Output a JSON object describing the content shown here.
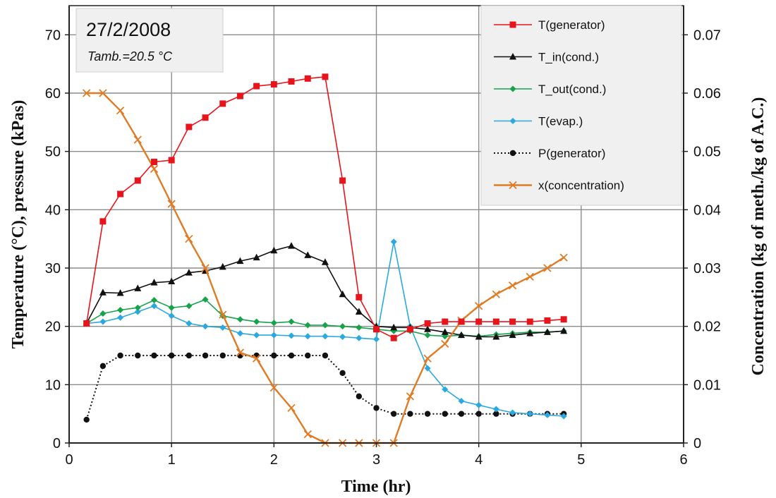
{
  "chart_data": {
    "type": "line",
    "title": "",
    "xlabel": "Time (hr)",
    "ylabel": "Temperature (°C), pressure (kPas)",
    "y2label": "Concentration (kg of meth./kg of A.C.)",
    "xlim": [
      0,
      6
    ],
    "ylim": [
      0,
      75
    ],
    "y2lim": [
      0,
      0.075
    ],
    "x_ticks": [
      "0",
      "1",
      "2",
      "3",
      "4",
      "5",
      "6"
    ],
    "y_ticks": [
      "0",
      "10",
      "20",
      "30",
      "40",
      "50",
      "60",
      "70"
    ],
    "y2_ticks": [
      "0",
      "0.01",
      "0.02",
      "0.03",
      "0.04",
      "0.05",
      "0.06",
      "0.07"
    ],
    "grid": true,
    "legend_position": "top-right",
    "annotation": {
      "date": "27/2/2008",
      "ambient": "Tamb.=20.5 °C"
    },
    "series": [
      {
        "name": "T(generator)",
        "axis": "left",
        "color": "#e8141c",
        "marker": "square",
        "dash": "solid",
        "x": [
          0.17,
          0.33,
          0.5,
          0.67,
          0.83,
          1.0,
          1.17,
          1.33,
          1.5,
          1.67,
          1.83,
          2.0,
          2.17,
          2.33,
          2.5,
          2.67,
          2.83,
          3.0,
          3.17,
          3.33,
          3.5,
          3.67,
          3.83,
          4.0,
          4.17,
          4.33,
          4.5,
          4.67,
          4.83
        ],
        "y": [
          20.5,
          38,
          42.7,
          45,
          48.2,
          48.5,
          54.2,
          55.8,
          58.2,
          59.5,
          61.2,
          61.5,
          62,
          62.5,
          62.8,
          45,
          25,
          19.5,
          18,
          19.5,
          20.5,
          20.8,
          20.8,
          20.8,
          20.8,
          20.8,
          20.8,
          21,
          21.2
        ]
      },
      {
        "name": "T_in(cond.)",
        "axis": "left",
        "color": "#111111",
        "marker": "triangle",
        "dash": "solid",
        "x": [
          0.17,
          0.33,
          0.5,
          0.67,
          0.83,
          1.0,
          1.17,
          1.33,
          1.5,
          1.67,
          1.83,
          2.0,
          2.17,
          2.33,
          2.5,
          2.67,
          2.83,
          3.0,
          3.17,
          3.33,
          3.5,
          3.67,
          3.83,
          4.0,
          4.17,
          4.33,
          4.5,
          4.67,
          4.83
        ],
        "y": [
          20.5,
          25.8,
          25.7,
          26.5,
          27.5,
          27.7,
          29.2,
          29.5,
          30.2,
          31.2,
          31.8,
          33,
          33.8,
          32.2,
          31,
          25.5,
          22.5,
          20,
          19.8,
          19.8,
          19.5,
          19,
          18.5,
          18.2,
          18.2,
          18.5,
          18.8,
          19,
          19.2
        ]
      },
      {
        "name": "T_out(cond.)",
        "axis": "left",
        "color": "#16a34a",
        "marker": "diamond",
        "dash": "solid",
        "x": [
          0.17,
          0.33,
          0.5,
          0.67,
          0.83,
          1.0,
          1.17,
          1.33,
          1.5,
          1.67,
          1.83,
          2.0,
          2.17,
          2.33,
          2.5,
          2.67,
          2.83,
          3.0,
          3.17,
          3.33,
          3.5,
          3.67,
          3.83,
          4.0,
          4.17,
          4.33,
          4.5,
          4.67,
          4.83
        ],
        "y": [
          20.5,
          22.2,
          22.8,
          23.2,
          24.5,
          23.2,
          23.5,
          24.6,
          21.8,
          21.2,
          20.8,
          20.6,
          20.8,
          20.2,
          20.2,
          20,
          19.8,
          19.5,
          19.2,
          19.2,
          18.5,
          18.3,
          18.5,
          18.3,
          18.6,
          18.8,
          19,
          19,
          19.2
        ]
      },
      {
        "name": "T(evap.)",
        "axis": "left",
        "color": "#29a9e0",
        "marker": "diamond",
        "dash": "solid",
        "x": [
          0.17,
          0.33,
          0.5,
          0.67,
          0.83,
          1.0,
          1.17,
          1.33,
          1.5,
          1.67,
          1.83,
          2.0,
          2.17,
          2.33,
          2.5,
          2.67,
          2.83,
          3.0,
          3.17,
          3.33,
          3.5,
          3.67,
          3.83,
          4.0,
          4.17,
          4.33,
          4.5,
          4.67,
          4.83
        ],
        "y": [
          20.5,
          20.8,
          21.5,
          22.5,
          23.5,
          21.8,
          20.5,
          20,
          19.8,
          18.8,
          18.5,
          18.5,
          18.4,
          18.3,
          18.3,
          18.2,
          18,
          17.8,
          34.5,
          20,
          12.8,
          9.2,
          7.2,
          6.5,
          5.8,
          5.2,
          5,
          4.8,
          4.6
        ]
      },
      {
        "name": "P(generator)",
        "axis": "left",
        "color": "#111111",
        "marker": "circle",
        "dash": "dotted",
        "x": [
          0.17,
          0.33,
          0.5,
          0.67,
          0.83,
          1.0,
          1.17,
          1.33,
          1.5,
          1.67,
          1.83,
          2.0,
          2.17,
          2.33,
          2.5,
          2.67,
          2.83,
          3.0,
          3.17,
          3.33,
          3.5,
          3.67,
          3.83,
          4.0,
          4.17,
          4.33,
          4.5,
          4.67,
          4.83
        ],
        "y": [
          4,
          13.2,
          15,
          15,
          15,
          15,
          15,
          15,
          15,
          15,
          15,
          15,
          15,
          15,
          15,
          12,
          8,
          6,
          5,
          5,
          5,
          5,
          5,
          5,
          5,
          5,
          5,
          5,
          5
        ]
      },
      {
        "name": "x(concentration)",
        "axis": "right",
        "color": "#e07b24",
        "marker": "x",
        "dash": "solid",
        "x": [
          0.17,
          0.33,
          0.5,
          0.67,
          0.83,
          1.0,
          1.17,
          1.33,
          1.5,
          1.67,
          1.83,
          2.0,
          2.17,
          2.33,
          2.5,
          2.67,
          2.83,
          3.0,
          3.17,
          3.33,
          3.5,
          3.67,
          3.83,
          4.0,
          4.17,
          4.33,
          4.5,
          4.67,
          4.83
        ],
        "y": [
          0.06,
          0.06,
          0.057,
          0.052,
          0.047,
          0.041,
          0.035,
          0.03,
          0.022,
          0.0155,
          0.0145,
          0.0095,
          0.006,
          0.0015,
          0,
          0,
          0,
          0,
          0,
          0.008,
          0.0145,
          0.017,
          0.021,
          0.0235,
          0.0255,
          0.027,
          0.0285,
          0.03,
          0.0318
        ]
      }
    ]
  }
}
